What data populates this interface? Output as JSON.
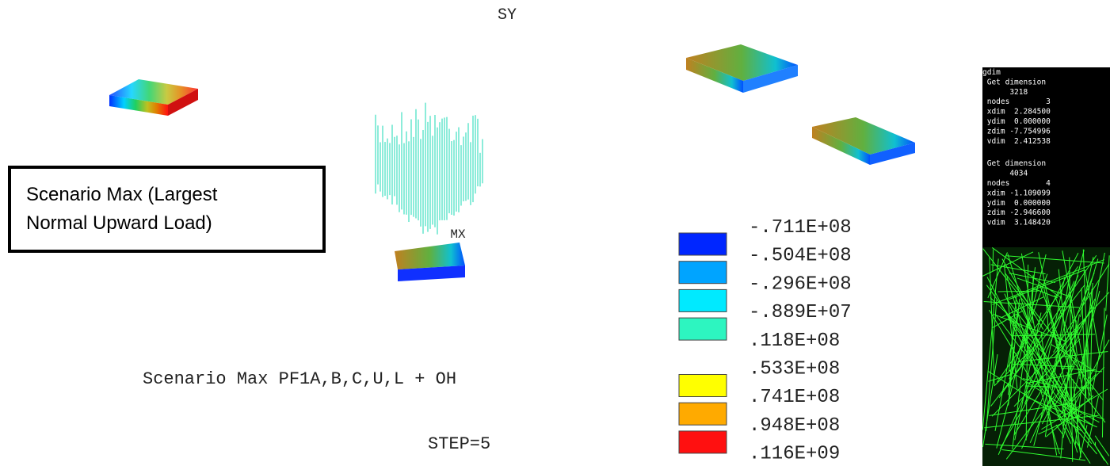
{
  "plot": {
    "title": "SY",
    "axis_label": "MX",
    "caption": "Scenario Max PF1A,B,C,U,L + OH",
    "step": "STEP=5"
  },
  "callout": {
    "lines": [
      "Scenario Max (Largest",
      "Normal Upward Load)"
    ]
  },
  "legend": {
    "labels": [
      "-.711E+08",
      "-.504E+08",
      "-.296E+08",
      "-.889E+07",
      ".118E+08",
      ".533E+08",
      ".741E+08",
      ".948E+08",
      ".116E+09"
    ],
    "colors": [
      "#0026ff",
      "#00a4ff",
      "#00eaff",
      "#2df5c0",
      null,
      "#ffff00",
      "#ffaa00",
      "#ff1010"
    ]
  },
  "console": {
    "lines": [
      "gdim",
      " Get dimension",
      "      3218",
      " nodes        3",
      " xdim  2.284500",
      " ydim  0.000000",
      " zdim -7.754996",
      " vdim  2.412538",
      " Get dimension",
      "      4034",
      " nodes        4",
      " xdim -1.109099",
      " ydim  0.000000",
      " zdim -2.946600",
      " vdim  3.148420"
    ]
  }
}
